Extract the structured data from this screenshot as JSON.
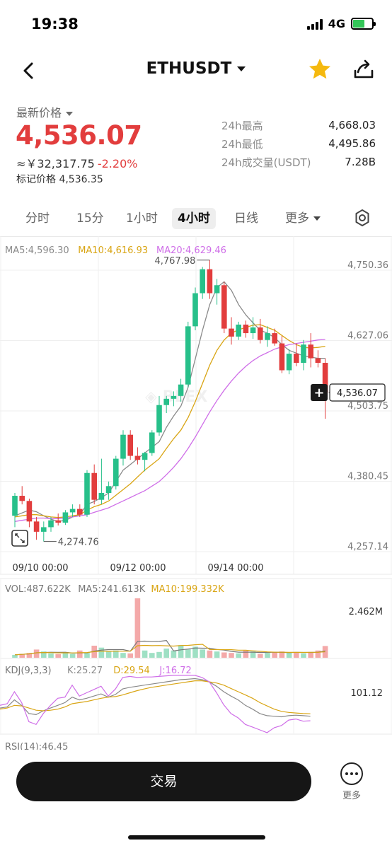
{
  "status_bar": {
    "time": "19:38",
    "network": "4G"
  },
  "header": {
    "title": "ETHUSDT",
    "icons": {
      "back": "chevron-left-icon",
      "favorite": "star-icon",
      "share": "share-icon"
    },
    "favorite_color": "#f5b90f"
  },
  "price": {
    "label": "最新价格",
    "last": "4,536.07",
    "cny": "≈￥32,317.75",
    "change": "-2.20%",
    "mark_label": "标记价格",
    "mark_value": "4,536.35",
    "color_down": "#e23d3d",
    "color_up": "#27c08a"
  },
  "stats": [
    {
      "label": "24h最高",
      "value": "4,668.03"
    },
    {
      "label": "24h最低",
      "value": "4,495.86"
    },
    {
      "label": "24h成交量(USDT)",
      "value": "7.28B"
    }
  ],
  "timeframes": {
    "items": [
      "分时",
      "15分",
      "1小时",
      "4小时",
      "日线",
      "更多"
    ],
    "active": "4小时"
  },
  "chart_data": [
    {
      "type": "candlestick",
      "indicators": [
        {
          "name": "MA5",
          "value": "4,596.30",
          "color": "#8a8a8a"
        },
        {
          "name": "MA10",
          "value": "4,616.93",
          "color": "#d9a514"
        },
        {
          "name": "MA20",
          "value": "4,629.46",
          "color": "#cf6ee8"
        }
      ],
      "y_ticks": [
        "4,750.36",
        "4,627.06",
        "4,503.75",
        "4,380.45",
        "4,257.14"
      ],
      "y_tick_values": [
        4750.36,
        4627.06,
        4503.75,
        4380.45,
        4257.14
      ],
      "ylim": [
        4257.14,
        4750.36
      ],
      "x_ticks": [
        "09/10 00:00",
        "09/12 00:00",
        "09/14 00:00"
      ],
      "high_label": "4,767.98",
      "low_label": "4,274.76",
      "current_price_tag": "4,536.07",
      "candles": [
        [
          4320,
          4360,
          4300,
          4355
        ],
        [
          4355,
          4372,
          4340,
          4346
        ],
        [
          4346,
          4350,
          4300,
          4310
        ],
        [
          4310,
          4318,
          4278,
          4292
        ],
        [
          4292,
          4310,
          4275,
          4300
        ],
        [
          4300,
          4318,
          4292,
          4312
        ],
        [
          4312,
          4324,
          4303,
          4308
        ],
        [
          4308,
          4330,
          4304,
          4326
        ],
        [
          4326,
          4340,
          4318,
          4332
        ],
        [
          4332,
          4340,
          4318,
          4322
        ],
        [
          4322,
          4400,
          4318,
          4395
        ],
        [
          4395,
          4410,
          4340,
          4348
        ],
        [
          4348,
          4420,
          4340,
          4360
        ],
        [
          4360,
          4380,
          4348,
          4372
        ],
        [
          4372,
          4425,
          4366,
          4420
        ],
        [
          4420,
          4470,
          4408,
          4462
        ],
        [
          4462,
          4470,
          4418,
          4425
        ],
        [
          4425,
          4440,
          4410,
          4418
        ],
        [
          4418,
          4432,
          4398,
          4430
        ],
        [
          4430,
          4470,
          4425,
          4466
        ],
        [
          4466,
          4530,
          4460,
          4514
        ],
        [
          4514,
          4530,
          4500,
          4525
        ],
        [
          4525,
          4538,
          4512,
          4530
        ],
        [
          4530,
          4560,
          4520,
          4550
        ],
        [
          4550,
          4660,
          4545,
          4652
        ],
        [
          4652,
          4720,
          4645,
          4710
        ],
        [
          4710,
          4756,
          4700,
          4752
        ],
        [
          4752,
          4768,
          4700,
          4710
        ],
        [
          4710,
          4735,
          4690,
          4724
        ],
        [
          4724,
          4730,
          4640,
          4648
        ],
        [
          4648,
          4668,
          4620,
          4634
        ],
        [
          4634,
          4660,
          4628,
          4655
        ],
        [
          4655,
          4662,
          4632,
          4640
        ],
        [
          4640,
          4668,
          4630,
          4650
        ],
        [
          4650,
          4665,
          4622,
          4628
        ],
        [
          4628,
          4652,
          4616,
          4640
        ],
        [
          4640,
          4648,
          4618,
          4622
        ],
        [
          4622,
          4635,
          4570,
          4575
        ],
        [
          4575,
          4612,
          4568,
          4604
        ],
        [
          4604,
          4622,
          4582,
          4588
        ],
        [
          4588,
          4628,
          4575,
          4620
        ],
        [
          4620,
          4640,
          4580,
          4596
        ],
        [
          4596,
          4610,
          4580,
          4588
        ],
        [
          4588,
          4596,
          4490,
          4536
        ]
      ],
      "ma5": [
        4320,
        4325,
        4330,
        4327,
        4320,
        4314,
        4310,
        4312,
        4318,
        4322,
        4340,
        4345,
        4352,
        4360,
        4380,
        4400,
        4410,
        4420,
        4430,
        4440,
        4450,
        4475,
        4495,
        4512,
        4545,
        4595,
        4645,
        4690,
        4720,
        4730,
        4715,
        4690,
        4672,
        4658,
        4645,
        4640,
        4632,
        4620,
        4610,
        4605,
        4600,
        4598,
        4596,
        4596
      ],
      "ma10": [
        4318,
        4320,
        4322,
        4322,
        4320,
        4318,
        4317,
        4318,
        4320,
        4322,
        4330,
        4336,
        4340,
        4346,
        4356,
        4366,
        4376,
        4388,
        4400,
        4410,
        4420,
        4438,
        4455,
        4470,
        4492,
        4520,
        4552,
        4584,
        4610,
        4628,
        4640,
        4646,
        4650,
        4654,
        4655,
        4650,
        4645,
        4636,
        4627,
        4620,
        4615,
        4614,
        4615,
        4617
      ],
      "ma20": [
        4310,
        4312,
        4314,
        4316,
        4316,
        4315,
        4315,
        4316,
        4318,
        4320,
        4322,
        4326,
        4330,
        4334,
        4340,
        4346,
        4352,
        4358,
        4364,
        4372,
        4380,
        4392,
        4405,
        4420,
        4438,
        4458,
        4480,
        4502,
        4522,
        4540,
        4556,
        4570,
        4582,
        4592,
        4600,
        4606,
        4612,
        4616,
        4620,
        4622,
        4624,
        4626,
        4628,
        4629
      ]
    },
    {
      "type": "bar",
      "indicators": [
        {
          "name": "VOL",
          "value": "487.622K",
          "color": "#777777"
        },
        {
          "name": "MA5",
          "value": "241.613K",
          "color": "#777777"
        },
        {
          "name": "MA10",
          "value": "199.332K",
          "color": "#d9a514"
        }
      ],
      "y_ticks": [
        "2.462M"
      ],
      "ylim": [
        0,
        2462
      ],
      "values": [
        120,
        160,
        200,
        340,
        260,
        180,
        150,
        220,
        160,
        300,
        200,
        500,
        420,
        260,
        300,
        200,
        180,
        2462,
        300,
        200,
        240,
        380,
        300,
        520,
        360,
        460,
        340,
        300,
        260,
        220,
        200,
        180,
        300,
        260,
        160,
        200,
        240,
        260,
        220,
        200,
        180,
        240,
        300,
        487
      ]
    },
    {
      "type": "line",
      "indicators": [
        {
          "name": "KDJ(9,3,3)",
          "value": "",
          "color": "#777777"
        },
        {
          "name": "K",
          "value": "25.27",
          "color": "#8a8a8a"
        },
        {
          "name": "D",
          "value": "29.54",
          "color": "#d9a514"
        },
        {
          "name": "J",
          "value": "16.72",
          "color": "#cf6ee8"
        }
      ],
      "y_ticks": [
        "101.12"
      ],
      "ylim": [
        0,
        101.12
      ],
      "series": [
        {
          "name": "K",
          "values": [
            40,
            42,
            55,
            45,
            30,
            28,
            35,
            40,
            45,
            50,
            60,
            55,
            58,
            62,
            66,
            60,
            65,
            75,
            78,
            80,
            82,
            84,
            86,
            88,
            90,
            92,
            93,
            94,
            92,
            88,
            80,
            70,
            62,
            55,
            45,
            38,
            30,
            26,
            25,
            24,
            26,
            27,
            26,
            25
          ]
        },
        {
          "name": "D",
          "values": [
            38,
            40,
            45,
            44,
            40,
            36,
            35,
            36,
            38,
            42,
            48,
            50,
            52,
            55,
            58,
            60,
            61,
            64,
            68,
            72,
            75,
            78,
            80,
            82,
            84,
            86,
            88,
            90,
            90,
            88,
            86,
            82,
            76,
            70,
            64,
            58,
            50,
            44,
            38,
            34,
            32,
            31,
            30,
            29.5
          ]
        },
        {
          "name": "J",
          "values": [
            45,
            48,
            70,
            50,
            15,
            10,
            30,
            45,
            58,
            60,
            82,
            62,
            68,
            74,
            80,
            62,
            75,
            96,
            98,
            96,
            97,
            97,
            98,
            99,
            100,
            100,
            100,
            100,
            96,
            88,
            68,
            46,
            30,
            22,
            10,
            5,
            0,
            -5,
            4,
            8,
            18,
            20,
            16,
            16.7
          ]
        }
      ]
    }
  ],
  "rsi_label": "RSI(14):46.45",
  "bottom": {
    "trade_label": "交易",
    "more_label": "更多"
  }
}
